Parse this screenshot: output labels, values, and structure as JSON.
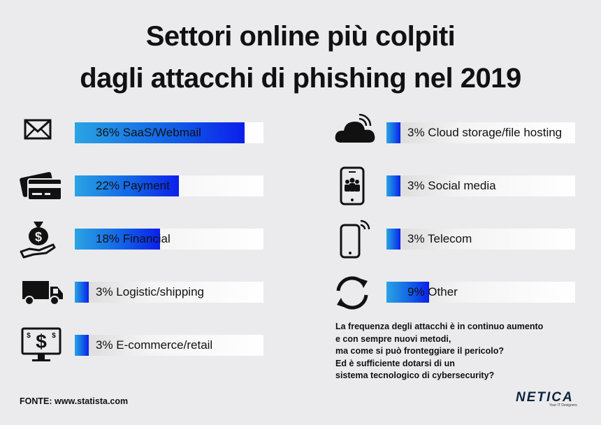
{
  "title": {
    "line1": "Settori online più colpiti",
    "line2": "dagli attacchi di phishing nel 2019"
  },
  "chart_data": {
    "type": "bar",
    "series": [
      {
        "label": "36% SaaS/Webmail",
        "category": "SaaS/Webmail",
        "value": 36,
        "icon": "envelope-icon"
      },
      {
        "label": "22% Payment",
        "category": "Payment",
        "value": 22,
        "icon": "credit-card-icon"
      },
      {
        "label": "18% Financial",
        "category": "Financial",
        "value": 18,
        "icon": "money-bag-icon"
      },
      {
        "label": "3% Logistic/shipping",
        "category": "Logistic/shipping",
        "value": 3,
        "icon": "truck-icon"
      },
      {
        "label": "3% E-commerce/retail",
        "category": "E-commerce/retail",
        "value": 3,
        "icon": "monitor-dollar-icon"
      },
      {
        "label": "3% Cloud storage/file hosting",
        "category": "Cloud storage/file hosting",
        "value": 3,
        "icon": "cloud-icon"
      },
      {
        "label": "3% Social media",
        "category": "Social media",
        "value": 3,
        "icon": "smartphone-people-icon"
      },
      {
        "label": "3% Telecom",
        "category": "Telecom",
        "value": 3,
        "icon": "smartphone-signal-icon"
      },
      {
        "label": "9% Other",
        "category": "Other",
        "value": 9,
        "icon": "refresh-arrows-icon"
      }
    ],
    "colors": {
      "bar_start": "#2aa3e4",
      "bar_end": "#0b1fea"
    }
  },
  "note": {
    "lines": [
      "La frequenza degli attacchi è in continuo aumento",
      "e con sempre nuovi metodi,",
      "ma come si può fronteggiare il pericolo?",
      "Ed è sufficiente dotarsi di un",
      "sistema tecnologico di cybersecurity?"
    ]
  },
  "source": "FONTE: www.statista.com",
  "logo": {
    "text": "NETICA",
    "tagline": "Your IT Designers"
  }
}
